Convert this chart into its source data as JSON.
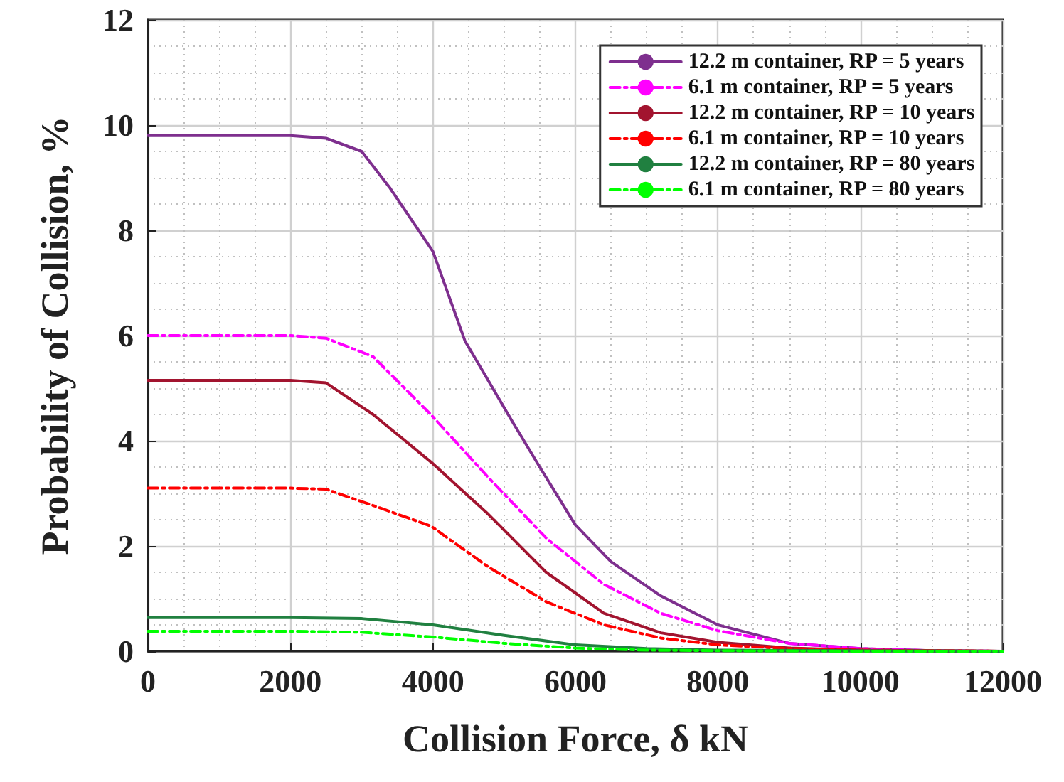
{
  "chart_data": {
    "type": "line",
    "xlabel": "Collision Force, δ kN",
    "ylabel": "Probability of Collision, %",
    "xlim": [
      0,
      12000
    ],
    "xticks": [
      0,
      2000,
      4000,
      6000,
      8000,
      10000,
      12000
    ],
    "ylim": [
      0,
      12
    ],
    "yticks": [
      0,
      2,
      4,
      6,
      8,
      10,
      12
    ],
    "grid": true,
    "legend": "top right",
    "marker": "none",
    "series": [
      {
        "name": "12.2 m container, RP = 5 years",
        "color": "#7e2f8e",
        "line_style": "solid",
        "x": [
          0,
          1000,
          2000,
          2500,
          3000,
          3400,
          4000,
          4450,
          5100,
          5500,
          6000,
          6500,
          7200,
          8000,
          9000,
          10000,
          11000,
          12000
        ],
        "values": [
          9.8,
          9.8,
          9.8,
          9.75,
          9.5,
          8.8,
          7.6,
          5.9,
          4.4,
          3.5,
          2.4,
          1.7,
          1.05,
          0.5,
          0.15,
          0.05,
          0.01,
          0
        ]
      },
      {
        "name": "6.1 m container, RP = 5 years",
        "color": "#ff00ff",
        "line_style": "dashed",
        "x": [
          0,
          1000,
          2000,
          2500,
          3160,
          3970,
          4780,
          5590,
          6400,
          7200,
          8000,
          9000,
          10000,
          11000,
          12000
        ],
        "values": [
          6.0,
          6.0,
          6.0,
          5.95,
          5.6,
          4.5,
          3.3,
          2.15,
          1.27,
          0.72,
          0.39,
          0.15,
          0.05,
          0.01,
          0
        ]
      },
      {
        "name": "12.2 m container, RP = 10 years",
        "color": "#a2142f",
        "line_style": "solid",
        "x": [
          0,
          1000,
          2000,
          2500,
          3160,
          3970,
          4780,
          5590,
          6400,
          7200,
          8000,
          9000,
          10000,
          11000,
          12000
        ],
        "values": [
          5.15,
          5.15,
          5.15,
          5.1,
          4.5,
          3.6,
          2.6,
          1.5,
          0.72,
          0.35,
          0.17,
          0.06,
          0.02,
          0.01,
          0
        ]
      },
      {
        "name": "6.1 m container, RP = 10 years",
        "color": "#ff0000",
        "line_style": "dashed",
        "x": [
          0,
          1000,
          2000,
          2500,
          3160,
          3970,
          4780,
          5590,
          6400,
          7200,
          8000,
          9000,
          10000,
          11000,
          12000
        ],
        "values": [
          3.1,
          3.1,
          3.1,
          3.08,
          2.77,
          2.38,
          1.6,
          0.94,
          0.5,
          0.25,
          0.12,
          0.05,
          0.02,
          0.01,
          0
        ]
      },
      {
        "name": "12.2 m container, RP = 80 years",
        "color": "#208040",
        "line_style": "solid",
        "x": [
          0,
          1000,
          2000,
          3000,
          4000,
          5000,
          6000,
          7000,
          8000,
          10000,
          12000
        ],
        "values": [
          0.64,
          0.64,
          0.64,
          0.62,
          0.5,
          0.3,
          0.12,
          0.05,
          0.02,
          0.01,
          0
        ]
      },
      {
        "name": "6.1 m container, RP = 80 years",
        "color": "#00ff00",
        "line_style": "dashed",
        "x": [
          0,
          1000,
          2000,
          3000,
          4000,
          5000,
          6000,
          7000,
          8000,
          10000,
          12000
        ],
        "values": [
          0.38,
          0.38,
          0.38,
          0.36,
          0.27,
          0.15,
          0.06,
          0.02,
          0.01,
          0,
          0
        ]
      }
    ]
  }
}
